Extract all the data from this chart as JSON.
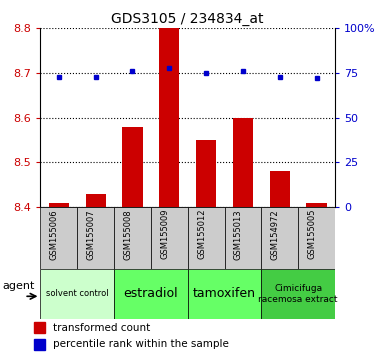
{
  "title": "GDS3105 / 234834_at",
  "samples": [
    "GSM155006",
    "GSM155007",
    "GSM155008",
    "GSM155009",
    "GSM155012",
    "GSM155013",
    "GSM154972",
    "GSM155005"
  ],
  "red_values": [
    8.41,
    8.43,
    8.58,
    8.8,
    8.55,
    8.6,
    8.48,
    8.41
  ],
  "blue_percentiles": [
    73,
    73,
    76,
    78,
    75,
    76,
    73,
    72
  ],
  "ylim_left": [
    8.4,
    8.8
  ],
  "ylim_right": [
    0,
    100
  ],
  "yticks_left": [
    8.4,
    8.5,
    8.6,
    8.7,
    8.8
  ],
  "yticks_right": [
    0,
    25,
    50,
    75,
    100
  ],
  "ytick_labels_right": [
    "0",
    "25",
    "50",
    "75",
    "100%"
  ],
  "bar_color": "#cc0000",
  "dot_color": "#0000cc",
  "groups": [
    {
      "label": "solvent control",
      "start": 0,
      "end": 2,
      "color": "#ccffcc",
      "fontsize": 6
    },
    {
      "label": "estradiol",
      "start": 2,
      "end": 4,
      "color": "#66ff66",
      "fontsize": 9
    },
    {
      "label": "tamoxifen",
      "start": 4,
      "end": 6,
      "color": "#66ff66",
      "fontsize": 9
    },
    {
      "label": "Cimicifuga\nracemosa extract",
      "start": 6,
      "end": 8,
      "color": "#44cc44",
      "fontsize": 6.5
    }
  ],
  "legend_red": "transformed count",
  "legend_blue": "percentile rank within the sample",
  "agent_label": "agent",
  "bg_color": "#ffffff",
  "plot_bg": "#ffffff",
  "grid_color": "#000000",
  "tick_color_left": "#cc0000",
  "tick_color_right": "#0000cc",
  "grey_box_color": "#cccccc"
}
